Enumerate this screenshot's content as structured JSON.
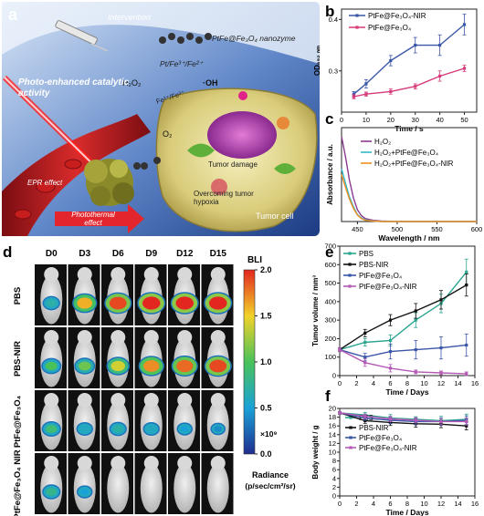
{
  "panels": {
    "a": {
      "label": "a",
      "texts": {
        "intervention": "Intervention",
        "nanozyme": "PtFe@Fe₃O₄ nanozyme",
        "redox": "Pt/Fe³⁺/Fe²⁺",
        "h2o2": "H₂O₂",
        "oh": "·OH",
        "fe_cycle": "Fe²⁺/Fe³⁺",
        "o2": "O₂",
        "photo_enhanced": "Photo-enhanced catalytic activity",
        "tumor_damage": "Tumor damage",
        "hypoxia": "Overcoming tumor hypoxia",
        "epr": "EPR effect",
        "photothermal": "Photothermal effect",
        "tumor_cell": "Tumor cell"
      }
    },
    "d": {
      "label": "d",
      "days": [
        "D0",
        "D3",
        "D6",
        "D9",
        "D12",
        "D15"
      ],
      "groups": [
        "PBS",
        "PBS-NIR",
        "PtFe@Fe₃O₄",
        "PtFe@Fe₃O₄ NIR"
      ],
      "colorbar": {
        "title": "BLI",
        "ticks": [
          "2.0",
          "1.5",
          "1.0",
          "0.5",
          "0.0"
        ],
        "multiplier": "×10⁹",
        "unit_line1": "Radiance",
        "unit_line2": "(p/sec/cm²/sr)"
      },
      "signal_levels": [
        [
          0.35,
          0.8,
          0.95,
          1.0,
          1.0,
          1.0
        ],
        [
          0.5,
          0.55,
          0.7,
          0.85,
          0.9,
          0.95
        ],
        [
          0.45,
          0.3,
          0.35,
          0.3,
          0.25,
          0.2
        ],
        [
          0.4,
          0.25,
          0.0,
          0.0,
          0.0,
          0.0
        ]
      ]
    }
  },
  "chart_data": [
    {
      "id": "b",
      "type": "line",
      "label": "b",
      "xlabel": "Time / s",
      "ylabel": "OD₆₅₂ ₙₘ",
      "xlim": [
        0,
        55
      ],
      "ylim": [
        0.22,
        0.42
      ],
      "xticks": [
        0,
        10,
        20,
        30,
        40,
        50
      ],
      "yticks": [
        0.3,
        0.4
      ],
      "x": [
        5,
        10,
        20,
        30,
        40,
        50
      ],
      "series": [
        {
          "name": "PtFe@Fe₃O₄-NIR",
          "color": "#3a56a8",
          "values": [
            0.255,
            0.275,
            0.32,
            0.35,
            0.35,
            0.39
          ],
          "err": [
            0.005,
            0.008,
            0.01,
            0.015,
            0.02,
            0.02
          ]
        },
        {
          "name": "PtFe@Fe₃O₄",
          "color": "#d63a7a",
          "values": [
            0.25,
            0.255,
            0.26,
            0.27,
            0.29,
            0.305
          ],
          "err": [
            0.004,
            0.004,
            0.005,
            0.005,
            0.01,
            0.006
          ]
        }
      ]
    },
    {
      "id": "c",
      "type": "line",
      "label": "c",
      "xlabel": "Wavelength / nm",
      "ylabel": "Absorbance / a.u.",
      "xlim": [
        430,
        600
      ],
      "ylim": [
        0,
        1.6
      ],
      "xticks": [
        450,
        500,
        550,
        600
      ],
      "x": [
        430,
        435,
        440,
        445,
        450,
        455,
        460,
        470,
        480,
        500,
        550,
        600
      ],
      "series": [
        {
          "name": "H₂O₂",
          "color": "#8b3a8f",
          "values": [
            1.45,
            1.1,
            0.7,
            0.4,
            0.2,
            0.1,
            0.05,
            0.02,
            0.01,
            0.0,
            0.0,
            0.0
          ]
        },
        {
          "name": "H₂O₂+PtFe@Fe₃O₄",
          "color": "#33b7c9",
          "values": [
            0.9,
            0.65,
            0.42,
            0.25,
            0.12,
            0.06,
            0.03,
            0.01,
            0.0,
            0.0,
            0.0,
            0.0
          ]
        },
        {
          "name": "H₂O₂+PtFe@Fe₃O₄-NIR",
          "color": "#f09020",
          "values": [
            0.8,
            0.58,
            0.38,
            0.22,
            0.11,
            0.05,
            0.02,
            0.01,
            0.0,
            0.0,
            0.0,
            0.0
          ]
        }
      ]
    },
    {
      "id": "e",
      "type": "line",
      "label": "e",
      "xlabel": "Time / Days",
      "ylabel": "Tumor volume / mm³",
      "xlim": [
        0,
        16
      ],
      "ylim": [
        0,
        700
      ],
      "xticks": [
        0,
        2,
        4,
        6,
        8,
        10,
        12,
        14,
        16
      ],
      "yticks": [
        0,
        100,
        200,
        300,
        400,
        500,
        600,
        700
      ],
      "x": [
        0,
        3,
        6,
        9,
        12,
        15
      ],
      "series": [
        {
          "name": "PBS",
          "color": "#2aa58f",
          "values": [
            140,
            180,
            190,
            300,
            390,
            560
          ],
          "err": [
            10,
            20,
            30,
            40,
            50,
            70
          ]
        },
        {
          "name": "PBS-NIR",
          "color": "#111111",
          "values": [
            140,
            230,
            300,
            350,
            410,
            490
          ],
          "err": [
            10,
            20,
            30,
            40,
            50,
            60
          ]
        },
        {
          "name": "PtFe@Fe₃O₄",
          "color": "#3a56a8",
          "values": [
            140,
            100,
            130,
            140,
            150,
            165
          ],
          "err": [
            10,
            20,
            40,
            50,
            60,
            60
          ]
        },
        {
          "name": "PtFe@Fe₃O₄-NIR",
          "color": "#b45bb5",
          "values": [
            140,
            70,
            40,
            20,
            15,
            10
          ],
          "err": [
            10,
            20,
            20,
            10,
            10,
            10
          ]
        }
      ]
    },
    {
      "id": "f",
      "type": "line",
      "label": "f",
      "xlabel": "Time / Days",
      "ylabel": "Body weight / g",
      "xlim": [
        0,
        16
      ],
      "ylim": [
        0,
        20
      ],
      "xticks": [
        0,
        2,
        4,
        6,
        8,
        10,
        12,
        14,
        16
      ],
      "yticks": [
        0,
        2,
        4,
        6,
        8,
        10,
        12,
        14,
        16,
        18,
        20
      ],
      "x": [
        0,
        3,
        6,
        9,
        12,
        15
      ],
      "series": [
        {
          "name": "PBS",
          "color": "#2aa58f",
          "values": [
            19.0,
            18.5,
            17.8,
            17.5,
            17.2,
            17.5
          ],
          "err": [
            0.3,
            0.6,
            0.8,
            0.6,
            1.0,
            1.2
          ]
        },
        {
          "name": "PBS-NIR",
          "color": "#111111",
          "values": [
            19.0,
            17.2,
            16.8,
            16.5,
            16.4,
            16.0
          ],
          "err": [
            0.3,
            0.6,
            0.7,
            0.8,
            0.8,
            0.9
          ]
        },
        {
          "name": "PtFe@Fe₃O₄",
          "color": "#3a56a8",
          "values": [
            19.0,
            17.8,
            17.3,
            17.0,
            17.0,
            17.3
          ],
          "err": [
            0.3,
            0.5,
            0.8,
            0.7,
            0.8,
            1.0
          ]
        },
        {
          "name": "PtFe@Fe₃O₄-NIR",
          "color": "#b45bb5",
          "values": [
            19.0,
            18.2,
            17.6,
            17.3,
            17.0,
            17.0
          ],
          "err": [
            0.3,
            0.5,
            0.6,
            0.6,
            0.7,
            0.8
          ]
        }
      ]
    }
  ]
}
